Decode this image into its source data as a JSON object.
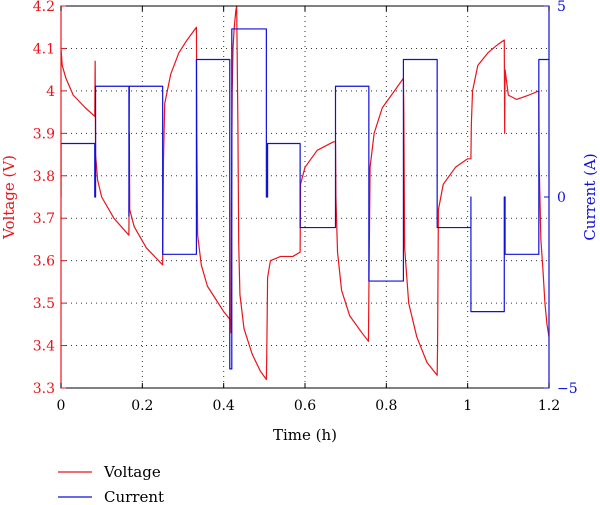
{
  "chart_data": {
    "type": "line",
    "xlabel": "Time (h)",
    "ylabel_left": "Voltage (V)",
    "ylabel_right": "Current (A)",
    "xlim": [
      0,
      1.2
    ],
    "ylim_left": [
      3.3,
      4.2
    ],
    "ylim_right": [
      -5,
      5
    ],
    "x_ticks": [
      "0",
      "0.2",
      "0.4",
      "0.6",
      "0.8",
      "1",
      "1.2"
    ],
    "y_left_ticks": [
      "3.3",
      "3.4",
      "3.5",
      "3.6",
      "3.7",
      "3.8",
      "3.9",
      "4",
      "4.1",
      "4.2"
    ],
    "y_right_ticks": [
      "−5",
      "0",
      "5"
    ],
    "grid": true,
    "legend_position": "below-left",
    "colors": {
      "voltage": "#e8141c",
      "current": "#1010d8"
    },
    "series": [
      {
        "name": "Voltage",
        "axis": "left",
        "points": [
          [
            0,
            4.1
          ],
          [
            0.003,
            4.06
          ],
          [
            0.012,
            4.03
          ],
          [
            0.03,
            3.99
          ],
          [
            0.06,
            3.96
          ],
          [
            0.083,
            3.94
          ],
          [
            0.084,
            4.07
          ],
          [
            0.085,
            3.85
          ],
          [
            0.09,
            3.79
          ],
          [
            0.1,
            3.75
          ],
          [
            0.13,
            3.7
          ],
          [
            0.167,
            3.66
          ],
          [
            0.168,
            3.9
          ],
          [
            0.169,
            3.72
          ],
          [
            0.18,
            3.68
          ],
          [
            0.21,
            3.63
          ],
          [
            0.24,
            3.6
          ],
          [
            0.25,
            3.59
          ],
          [
            0.252,
            3.84
          ],
          [
            0.255,
            3.97
          ],
          [
            0.27,
            4.04
          ],
          [
            0.29,
            4.09
          ],
          [
            0.31,
            4.12
          ],
          [
            0.333,
            4.15
          ],
          [
            0.334,
            3.9
          ],
          [
            0.336,
            3.66
          ],
          [
            0.345,
            3.59
          ],
          [
            0.36,
            3.54
          ],
          [
            0.38,
            3.51
          ],
          [
            0.4,
            3.48
          ],
          [
            0.417,
            3.46
          ],
          [
            0.418,
            3.43
          ],
          [
            0.419,
            3.72
          ],
          [
            0.421,
            4.0
          ],
          [
            0.423,
            4.1
          ],
          [
            0.426,
            4.15
          ],
          [
            0.43,
            4.19
          ],
          [
            0.432,
            4.2
          ],
          [
            0.435,
            3.92
          ],
          [
            0.437,
            3.64
          ],
          [
            0.44,
            3.52
          ],
          [
            0.45,
            3.44
          ],
          [
            0.47,
            3.38
          ],
          [
            0.49,
            3.34
          ],
          [
            0.505,
            3.32
          ],
          [
            0.506,
            3.38
          ],
          [
            0.508,
            3.56
          ],
          [
            0.515,
            3.6
          ],
          [
            0.54,
            3.61
          ],
          [
            0.57,
            3.61
          ],
          [
            0.588,
            3.62
          ],
          [
            0.589,
            3.78
          ],
          [
            0.6,
            3.82
          ],
          [
            0.63,
            3.86
          ],
          [
            0.67,
            3.88
          ],
          [
            0.675,
            3.88
          ],
          [
            0.676,
            3.75
          ],
          [
            0.68,
            3.62
          ],
          [
            0.69,
            3.53
          ],
          [
            0.71,
            3.47
          ],
          [
            0.74,
            3.43
          ],
          [
            0.756,
            3.41
          ],
          [
            0.757,
            3.52
          ],
          [
            0.76,
            3.82
          ],
          [
            0.77,
            3.9
          ],
          [
            0.79,
            3.96
          ],
          [
            0.82,
            4.0
          ],
          [
            0.842,
            4.03
          ],
          [
            0.843,
            3.95
          ],
          [
            0.845,
            3.63
          ],
          [
            0.855,
            3.5
          ],
          [
            0.875,
            3.42
          ],
          [
            0.9,
            3.36
          ],
          [
            0.925,
            3.33
          ],
          [
            0.926,
            3.4
          ],
          [
            0.928,
            3.72
          ],
          [
            0.94,
            3.78
          ],
          [
            0.97,
            3.82
          ],
          [
            1.0,
            3.84
          ],
          [
            1.008,
            3.84
          ],
          [
            1.009,
            3.92
          ],
          [
            1.012,
            4.0
          ],
          [
            1.025,
            4.06
          ],
          [
            1.05,
            4.09
          ],
          [
            1.075,
            4.11
          ],
          [
            1.09,
            4.12
          ],
          [
            1.091,
            3.9
          ],
          [
            1.092,
            4.05
          ],
          [
            1.1,
            3.99
          ],
          [
            1.12,
            3.98
          ],
          [
            1.15,
            3.99
          ],
          [
            1.175,
            4.0
          ],
          [
            1.176,
            3.82
          ],
          [
            1.18,
            3.65
          ],
          [
            1.185,
            3.58
          ],
          [
            1.19,
            3.5
          ],
          [
            1.195,
            3.45
          ],
          [
            1.2,
            3.42
          ]
        ]
      },
      {
        "name": "Current",
        "axis": "right",
        "points": [
          [
            0,
            0
          ],
          [
            0,
            1.4
          ],
          [
            0.083,
            1.4
          ],
          [
            0.083,
            0
          ],
          [
            0.085,
            0
          ],
          [
            0.085,
            2.9
          ],
          [
            0.167,
            2.9
          ],
          [
            0.167,
            -0.5
          ],
          [
            0.168,
            2.9
          ],
          [
            0.25,
            2.9
          ],
          [
            0.25,
            -1.5
          ],
          [
            0.333,
            -1.5
          ],
          [
            0.333,
            3.6
          ],
          [
            0.415,
            3.6
          ],
          [
            0.415,
            -4.5
          ],
          [
            0.42,
            -4.5
          ],
          [
            0.42,
            4.4
          ],
          [
            0.505,
            4.4
          ],
          [
            0.505,
            0
          ],
          [
            0.508,
            0
          ],
          [
            0.508,
            1.4
          ],
          [
            0.588,
            1.4
          ],
          [
            0.588,
            -0.8
          ],
          [
            0.675,
            -0.8
          ],
          [
            0.675,
            2.9
          ],
          [
            0.757,
            2.9
          ],
          [
            0.757,
            -2.2
          ],
          [
            0.842,
            -2.2
          ],
          [
            0.842,
            3.6
          ],
          [
            0.925,
            3.6
          ],
          [
            0.925,
            -0.8
          ],
          [
            1.008,
            -0.8
          ],
          [
            1.008,
            0
          ],
          [
            1.008,
            -3.0
          ],
          [
            1.09,
            -3.0
          ],
          [
            1.09,
            0
          ],
          [
            1.092,
            0
          ],
          [
            1.092,
            -1.5
          ],
          [
            1.175,
            -1.5
          ],
          [
            1.175,
            3.6
          ],
          [
            1.2,
            3.6
          ]
        ]
      }
    ]
  },
  "legend": {
    "voltage_label": "Voltage",
    "current_label": "Current"
  }
}
